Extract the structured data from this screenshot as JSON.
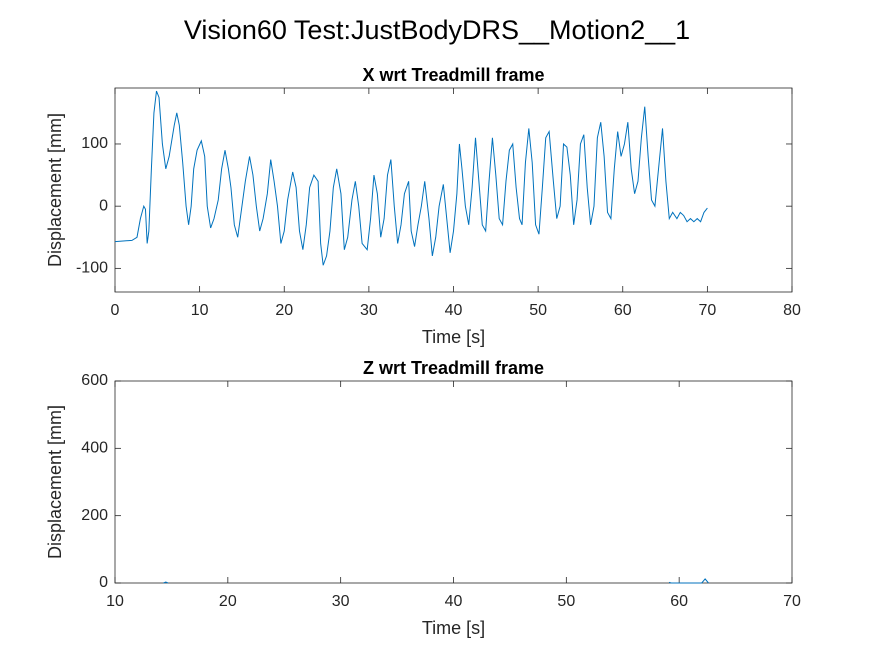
{
  "title": "Vision60 Test:JustBodyDRS__Motion2__1",
  "chart_data": [
    {
      "type": "line",
      "title": "X wrt Treadmill frame",
      "xlabel": "Time [s]",
      "ylabel": "Displacement [mm]",
      "color": "#0072bd",
      "xlim": [
        0,
        80
      ],
      "xticks": [
        0,
        10,
        20,
        30,
        40,
        50,
        60,
        70,
        80
      ],
      "ylim": [
        -138,
        190
      ],
      "yticks": [
        -100,
        0,
        100
      ],
      "x": [
        0,
        2,
        2.6,
        3,
        3.4,
        3.6,
        3.8,
        4,
        4.3,
        4.6,
        4.9,
        5.2,
        5.6,
        6,
        6.4,
        7,
        7.3,
        7.6,
        8,
        8.4,
        8.7,
        9,
        9.3,
        9.7,
        10.2,
        10.6,
        10.9,
        11.3,
        11.7,
        12.2,
        12.6,
        13,
        13.4,
        13.7,
        14.1,
        14.5,
        15,
        15.4,
        15.9,
        16.3,
        16.7,
        17.1,
        17.5,
        18,
        18.4,
        18.8,
        19.2,
        19.6,
        20,
        20.4,
        21,
        21.4,
        21.8,
        22.2,
        22.6,
        23,
        23.5,
        24,
        24.3,
        24.6,
        25,
        25.4,
        25.8,
        26.2,
        26.7,
        27.1,
        27.5,
        28,
        28.4,
        28.8,
        29.2,
        29.8,
        30.2,
        30.6,
        31,
        31.4,
        31.8,
        32.2,
        32.6,
        33,
        33.4,
        33.8,
        34.2,
        34.7,
        35,
        35.4,
        35.8,
        36.2,
        36.6,
        37.1,
        37.5,
        37.9,
        38.3,
        38.8,
        39.2,
        39.6,
        40,
        40.4,
        40.7,
        41,
        41.4,
        41.8,
        42.2,
        42.6,
        43,
        43.4,
        43.8,
        44.2,
        44.6,
        45,
        45.4,
        45.8,
        46.2,
        46.6,
        47,
        47.4,
        47.8,
        48.1,
        48.5,
        48.9,
        49.3,
        49.7,
        50.1,
        50.5,
        50.9,
        51.3,
        51.8,
        52.2,
        52.6,
        53,
        53.4,
        53.8,
        54.2,
        54.6,
        55,
        55.4,
        55.8,
        56.2,
        56.6,
        57,
        57.4,
        57.8,
        58.2,
        58.6,
        59,
        59.4,
        59.8,
        60.2,
        60.6,
        61,
        61.4,
        61.8,
        62.2,
        62.6,
        63,
        63.4,
        63.8,
        64.3,
        64.7,
        65.1,
        65.5,
        65.9,
        66.4,
        66.8,
        67.2,
        67.6,
        68,
        68.4,
        68.8,
        69.2,
        69.6,
        70
      ],
      "values": [
        -57,
        -55,
        -50,
        -20,
        0,
        -5,
        -60,
        -40,
        60,
        150,
        185,
        175,
        100,
        60,
        80,
        130,
        150,
        130,
        70,
        0,
        -30,
        0,
        60,
        90,
        105,
        80,
        0,
        -35,
        -20,
        10,
        60,
        90,
        60,
        30,
        -30,
        -50,
        0,
        40,
        80,
        50,
        0,
        -40,
        -20,
        20,
        75,
        40,
        0,
        -60,
        -40,
        10,
        55,
        30,
        -40,
        -70,
        -30,
        30,
        50,
        40,
        -60,
        -95,
        -80,
        -40,
        30,
        60,
        20,
        -70,
        -50,
        10,
        40,
        0,
        -60,
        -70,
        -20,
        50,
        20,
        -50,
        -20,
        50,
        75,
        0,
        -60,
        -30,
        20,
        40,
        -40,
        -65,
        -30,
        0,
        40,
        -20,
        -80,
        -50,
        0,
        35,
        -20,
        -75,
        -40,
        20,
        100,
        60,
        0,
        -30,
        30,
        110,
        40,
        -30,
        -40,
        40,
        110,
        50,
        -20,
        -30,
        40,
        90,
        100,
        30,
        -20,
        -30,
        70,
        125,
        70,
        -30,
        -45,
        30,
        110,
        120,
        40,
        -20,
        0,
        100,
        95,
        50,
        -30,
        10,
        100,
        115,
        30,
        -30,
        0,
        110,
        135,
        80,
        -10,
        -20,
        60,
        120,
        80,
        100,
        135,
        60,
        20,
        40,
        110,
        160,
        80,
        10,
        0,
        70,
        125,
        40,
        -20,
        -10,
        -20,
        -10,
        -15,
        -25,
        -20,
        -25,
        -20,
        -25,
        -10,
        -3
      ]
    },
    {
      "type": "line",
      "title": "Z wrt Treadmill frame",
      "xlabel": "Time [s]",
      "ylabel": "Displacement [mm]",
      "color": "#0072bd",
      "xlim": [
        10,
        70
      ],
      "xticks": [
        10,
        20,
        30,
        40,
        50,
        60,
        70
      ],
      "ylim": [
        0,
        600
      ],
      "yticks": [
        0,
        200,
        400,
        600
      ],
      "x": [
        14.3,
        14.5,
        14.7,
        59,
        59.1,
        59.3,
        62,
        62.3,
        62.6
      ],
      "values": [
        0,
        3,
        0,
        null,
        2,
        0,
        0,
        12,
        0
      ]
    }
  ]
}
